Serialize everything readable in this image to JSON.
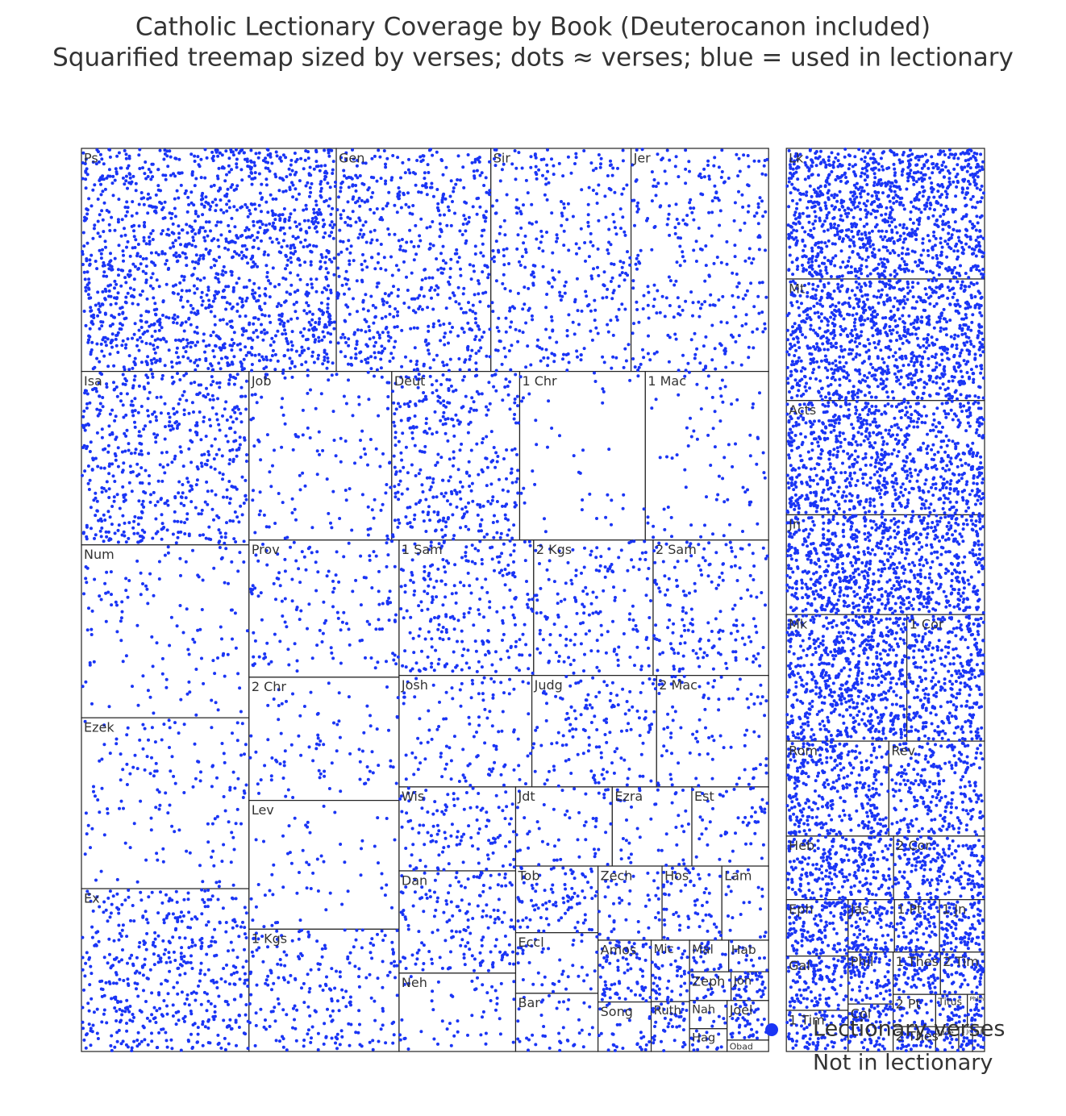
{
  "chart_data": {
    "type": "treemap",
    "title": "Catholic Lectionary Coverage by Book (Deuterocanon included)",
    "subtitle": "Squarified treemap sized by verses; dots ≈ verses; blue = used in lectionary",
    "series": [
      {
        "name": "Lectionary verses",
        "color": "#1a35f5"
      },
      {
        "name": "Not in lectionary",
        "color": "#ffffff"
      }
    ],
    "groups": [
      {
        "categories": [
          "Ps",
          "Gen",
          "Sir",
          "Jer",
          "Isa",
          "Num",
          "Ezek",
          "Ex",
          "Job",
          "Deut",
          "1 Chr",
          "1 Mac",
          "Prov",
          "2 Chr",
          "Lev",
          "1 Kgs",
          "1 Sam",
          "2 Kgs",
          "2 Sam",
          "Josh",
          "Judg",
          "2 Mac",
          "Wis",
          "Dan",
          "Neh",
          "Jdt",
          "Ezra",
          "Est",
          "Tob",
          "Eccl",
          "Bar",
          "Zech",
          "Hos",
          "Lam",
          "Amos",
          "Song",
          "Mic",
          "Ruth",
          "Mal",
          "Hab",
          "Zeph",
          "Jon",
          "Nah",
          "Hag",
          "Joel",
          "Obad"
        ],
        "values": [
          2527,
          1533,
          1390,
          1364,
          1292,
          1288,
          1273,
          1213,
          1070,
          959,
          942,
          924,
          915,
          822,
          859,
          816,
          810,
          719,
          695,
          658,
          618,
          555,
          435,
          530,
          406,
          340,
          280,
          270,
          244,
          222,
          213,
          211,
          197,
          154,
          146,
          117,
          105,
          85,
          55,
          56,
          53,
          48,
          47,
          38,
          73,
          21
        ],
        "lectionary": [
          1500,
          600,
          350,
          300,
          550,
          130,
          150,
          500,
          130,
          350,
          40,
          80,
          150,
          90,
          60,
          220,
          250,
          160,
          170,
          110,
          140,
          90,
          120,
          170,
          50,
          50,
          40,
          50,
          90,
          40,
          40,
          40,
          60,
          20,
          80,
          30,
          50,
          40,
          25,
          15,
          20,
          40,
          10,
          15,
          40,
          0
        ]
      },
      {
        "categories": [
          "Lk",
          "Mt",
          "Acts",
          "Jn",
          "Mk",
          "1 Cor",
          "Rom",
          "Rev",
          "Heb",
          "2 Cor",
          "Eph",
          "Gal",
          "1 Tim",
          "Jas",
          "1 Pt",
          "1 Jn",
          "Phil",
          "Col",
          "1 Thes",
          "2 Tim",
          "2 Pt",
          "2 Thes",
          "Titus",
          "Phlm",
          "Jude",
          "3 Jn",
          "2 Jn"
        ],
        "values": [
          1151,
          1071,
          1007,
          879,
          678,
          437,
          433,
          404,
          303,
          257,
          155,
          149,
          113,
          108,
          105,
          105,
          104,
          95,
          89,
          83,
          61,
          47,
          46,
          25,
          25,
          15,
          13
        ],
        "lectionary": [
          1100,
          1000,
          850,
          850,
          650,
          350,
          350,
          250,
          250,
          200,
          140,
          120,
          80,
          100,
          90,
          100,
          90,
          80,
          80,
          70,
          30,
          40,
          30,
          20,
          15,
          15,
          13
        ]
      }
    ]
  }
}
